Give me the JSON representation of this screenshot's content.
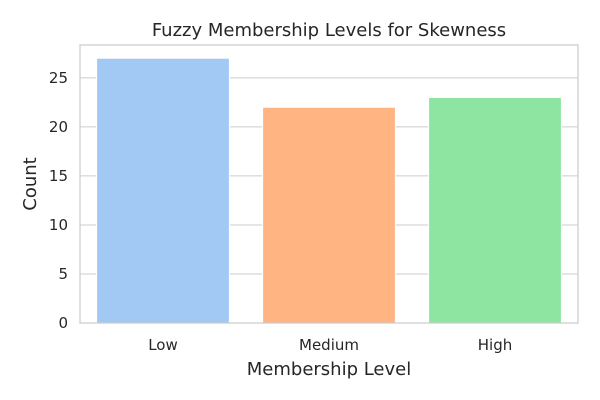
{
  "chart_data": {
    "type": "bar",
    "title": "Fuzzy Membership Levels for Skewness",
    "xlabel": "Membership Level",
    "ylabel": "Count",
    "categories": [
      "Low",
      "Medium",
      "High"
    ],
    "values": [
      27,
      22,
      23
    ],
    "colors": [
      "#a1c9f4",
      "#ffb482",
      "#8de5a1"
    ],
    "ylim": [
      0,
      28.35
    ],
    "yticks": [
      0,
      5,
      10,
      15,
      20,
      25
    ],
    "grid": "horizontal"
  }
}
